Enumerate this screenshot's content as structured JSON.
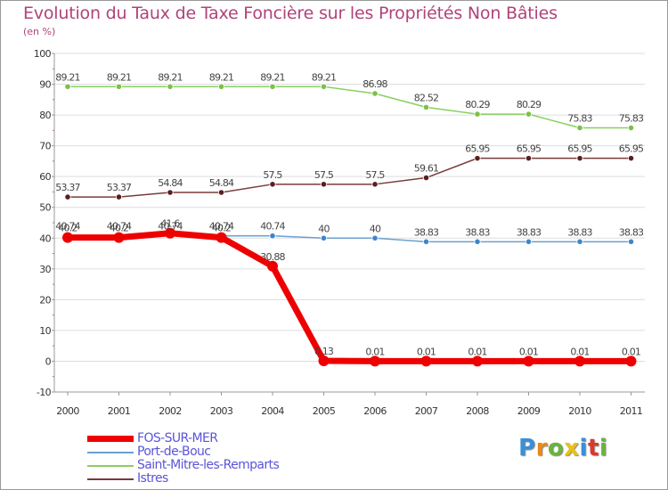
{
  "title": "Evolution du Taux de Taxe Foncière sur les Propriétés Non Bâties",
  "subtitle": "(en %)",
  "logo": {
    "text": "Proxiti",
    "letter_colors": [
      "#3a8fd6",
      "#e88a1a",
      "#6cb33f",
      "#e8c21a",
      "#3a8fd6",
      "#d83a2a",
      "#6cb33f"
    ]
  },
  "colors": {
    "grid": "#dddddd",
    "axis": "#999999",
    "tick_marks": "#d0567f"
  },
  "chart_data": {
    "type": "line",
    "title": "Evolution du Taux de Taxe Foncière sur les Propriétés Non Bâties",
    "ylabel": "(en %)",
    "xlabel": "",
    "x": [
      "2000",
      "2001",
      "2002",
      "2003",
      "2004",
      "2005",
      "2006",
      "2007",
      "2008",
      "2009",
      "2010",
      "2011"
    ],
    "ylim": [
      -10,
      100
    ],
    "yticks": [
      "-10",
      "0",
      "10",
      "20",
      "30",
      "40",
      "50",
      "60",
      "70",
      "80",
      "90",
      "100"
    ],
    "grid": "horizontal",
    "legend_position": "bottom-left",
    "series": [
      {
        "name": "Saint-Mitre-les-Remparts",
        "color": "#88d060",
        "marker": "#7cc04a",
        "values": [
          89.21,
          89.21,
          89.21,
          89.21,
          89.21,
          89.21,
          86.98,
          82.52,
          80.29,
          80.29,
          75.83,
          75.83
        ],
        "labels": [
          "89.21",
          "89.21",
          "89.21",
          "89.21",
          "89.21",
          "89.21",
          "86.98",
          "82.52",
          "80.29",
          "80.29",
          "75.83",
          "75.83"
        ]
      },
      {
        "name": "Istres",
        "color": "#7a3a3a",
        "marker": "#5c1e1e",
        "values": [
          53.37,
          53.37,
          54.84,
          54.84,
          57.5,
          57.5,
          57.5,
          59.61,
          65.95,
          65.95,
          65.95,
          65.95
        ],
        "labels": [
          "53.37",
          "53.37",
          "54.84",
          "54.84",
          "57.5",
          "57.5",
          "57.5",
          "59.61",
          "65.95",
          "65.95",
          "65.95",
          "65.95"
        ]
      },
      {
        "name": "Port-de-Bouc",
        "color": "#6aa0d0",
        "marker": "#3f86c8",
        "values": [
          40.74,
          40.74,
          40.74,
          40.74,
          40.74,
          40,
          40,
          38.83,
          38.83,
          38.83,
          38.83,
          38.83
        ],
        "labels": [
          "40.74",
          "40.74",
          "40.74",
          "40.74",
          "40.74",
          "40",
          "40",
          "38.83",
          "38.83",
          "38.83",
          "38.83",
          "38.83"
        ]
      },
      {
        "name": "FOS-SUR-MER",
        "color": "#ee0000",
        "marker": "#ee0000",
        "values": [
          40.2,
          40.2,
          41.6,
          40.2,
          30.88,
          0.13,
          0.01,
          0.01,
          0.01,
          0.01,
          0.01,
          0.01
        ],
        "labels": [
          "40.2",
          "40.2",
          "41.6",
          "40.2",
          "30.88",
          "0.13",
          "0.01",
          "0.01",
          "0.01",
          "0.01",
          "0.01",
          "0.01"
        ]
      }
    ],
    "legend": [
      "FOS-SUR-MER",
      "Port-de-Bouc",
      "Saint-Mitre-les-Remparts",
      "Istres"
    ]
  }
}
